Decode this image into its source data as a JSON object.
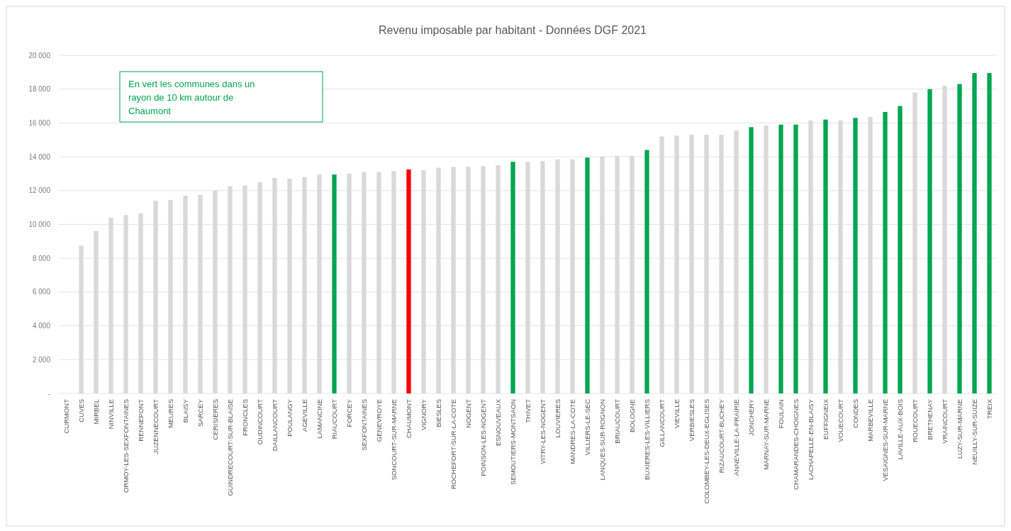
{
  "chart_data": {
    "type": "bar",
    "title": "Revenu imposable par habitant - Données DGF 2021",
    "categories": [
      "CURMONT",
      "CUVES",
      "MIRBEL",
      "NINVILLE",
      "ORMOY-LES-SEXFONTAINES",
      "RENNEPONT",
      "JUZENNECOURT",
      "MEURES",
      "BLAISY",
      "SARCEY",
      "CERISIERES",
      "GUINDRECOURT-SUR-BLAISE",
      "FRONCLES",
      "OUDINCOURT",
      "DAILLANCOURT",
      "POULANGY",
      "AGEVILLE",
      "LAMANCINE",
      "RIAUCOURT",
      "FORCEY",
      "SEXFONTAINES",
      "GENEVROYE",
      "SONCOURT-SUR-MARNE",
      "CHAUMONT",
      "VIGNORY",
      "BIESLES",
      "ROCHEFORT-SUR-LA-COTE",
      "NOGENT",
      "POINSON-LES-NOGENT",
      "ESNOUVEAUX",
      "SEMOUTIERS-MONTSAON",
      "THIVET",
      "VITRY-LES-NOGENT",
      "LOUVIERES",
      "MANDRES-LA-COTE",
      "VILLIERS-LE-SEC",
      "LANQUES-SUR-ROGNON",
      "BRIAUCOURT",
      "BOLOGNE",
      "BUXIERES-LES-VILLIERS",
      "GILLANCOURT",
      "VIEVILLE",
      "VERBIESLES",
      "COLOMBEY-LES-DEUX-EGLISES",
      "RIZAUCOURT-BUCHEY",
      "ANNEVILLE-LA-PRAIRIE",
      "JONCHERY",
      "MARNAY-SUR-MARNE",
      "FOULAIN",
      "CHAMARANDES-CHOIGNES",
      "LACHAPELLE-EN-BLAISY",
      "EUFFIGNEIX",
      "VOUECOURT",
      "CONDES",
      "MARBEVILLE",
      "VESAIGNES-SUR-MARNE",
      "LAVILLE-AUX-BOIS",
      "ROUECOURT",
      "BRETHENAY",
      "VRAINCOURT",
      "LUZY-SUR-MARNE",
      "NEUILLY-SUR-SUIZE",
      "TREIX"
    ],
    "values": [
      null,
      8750,
      9600,
      10400,
      10550,
      10650,
      11400,
      11450,
      11700,
      11750,
      12000,
      12250,
      12300,
      12500,
      12750,
      12700,
      12800,
      12950,
      12950,
      13000,
      13100,
      13100,
      13150,
      13250,
      13200,
      13350,
      13400,
      13400,
      13450,
      13500,
      13700,
      13700,
      13750,
      13850,
      13850,
      13950,
      14000,
      14050,
      14050,
      14400,
      15200,
      15250,
      15300,
      15300,
      15300,
      15550,
      15750,
      15850,
      15900,
      15900,
      16150,
      16200,
      16150,
      16300,
      16350,
      16650,
      17000,
      17800,
      18000,
      18200,
      18300,
      18950,
      18950
    ],
    "colors": [
      null,
      "#d9d9d9",
      "#d9d9d9",
      "#d9d9d9",
      "#d9d9d9",
      "#d9d9d9",
      "#d9d9d9",
      "#d9d9d9",
      "#d9d9d9",
      "#d9d9d9",
      "#d9d9d9",
      "#d9d9d9",
      "#d9d9d9",
      "#d9d9d9",
      "#d9d9d9",
      "#d9d9d9",
      "#d9d9d9",
      "#d9d9d9",
      "#00a650",
      "#d9d9d9",
      "#d9d9d9",
      "#d9d9d9",
      "#d9d9d9",
      "#ff0000",
      "#d9d9d9",
      "#d9d9d9",
      "#d9d9d9",
      "#d9d9d9",
      "#d9d9d9",
      "#d9d9d9",
      "#00a650",
      "#d9d9d9",
      "#d9d9d9",
      "#d9d9d9",
      "#d9d9d9",
      "#00a650",
      "#d9d9d9",
      "#d9d9d9",
      "#d9d9d9",
      "#00a650",
      "#d9d9d9",
      "#d9d9d9",
      "#d9d9d9",
      "#d9d9d9",
      "#d9d9d9",
      "#d9d9d9",
      "#00a650",
      "#d9d9d9",
      "#00a650",
      "#00a650",
      "#d9d9d9",
      "#00a650",
      "#d9d9d9",
      "#00a650",
      "#d9d9d9",
      "#00a650",
      "#00a650",
      "#d9d9d9",
      "#00a650",
      "#d9d9d9",
      "#00a650",
      "#00a650",
      "#00a650"
    ],
    "ylim": [
      0,
      20000
    ],
    "yticks": [
      {
        "value": 0,
        "label": "-"
      },
      {
        "value": 2000,
        "label": "2 000"
      },
      {
        "value": 4000,
        "label": "4 000"
      },
      {
        "value": 6000,
        "label": "6 000"
      },
      {
        "value": 8000,
        "label": "8 000"
      },
      {
        "value": 10000,
        "label": "10 000"
      },
      {
        "value": 12000,
        "label": "12 000"
      },
      {
        "value": 14000,
        "label": "14 000"
      },
      {
        "value": 16000,
        "label": "16 000"
      },
      {
        "value": 18000,
        "label": "18 000"
      },
      {
        "value": 20000,
        "label": "20 000"
      }
    ],
    "grid": "y",
    "annotations": [
      "En vert les communes dans un rayon de 10 km autour de Chaumont"
    ]
  }
}
